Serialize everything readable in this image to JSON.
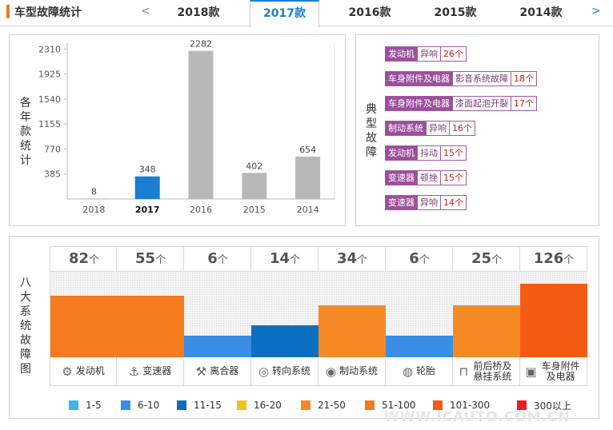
{
  "header": {
    "title": "车型故障统计",
    "prev_arrow": "<",
    "next_arrow": ">",
    "tabs": [
      {
        "label": "2018款"
      },
      {
        "label": "2017款"
      },
      {
        "label": "2016款"
      },
      {
        "label": "2015款"
      },
      {
        "label": "2014款"
      }
    ],
    "active_tab": "2017款"
  },
  "yearly_panel": {
    "label": "各年款统计"
  },
  "chart_data": {
    "type": "bar",
    "title": "",
    "xlabel": "",
    "ylabel": "各年款统计",
    "categories": [
      "2018",
      "2017",
      "2016",
      "2015",
      "2014"
    ],
    "values": [
      8,
      348,
      2282,
      402,
      654
    ],
    "highlight_category": "2017",
    "yticks": [
      385,
      770,
      1155,
      1540,
      1925,
      2310
    ],
    "ylim": [
      0,
      2400
    ],
    "colors": {
      "default": "#b8b8b8",
      "highlight": "#1a7fd0"
    },
    "grid": false
  },
  "faults_panel": {
    "label": "典型故障",
    "items": [
      {
        "system": "发动机",
        "issue": "异响",
        "count": "26个"
      },
      {
        "system": "车身附件及电器",
        "issue": "影音系统故障",
        "count": "18个"
      },
      {
        "system": "车身附件及电器",
        "issue": "漆面起泡开裂",
        "count": "17个"
      },
      {
        "system": "制动系统",
        "issue": "异响",
        "count": "16个"
      },
      {
        "system": "发动机",
        "issue": "抖动",
        "count": "15个"
      },
      {
        "system": "变速器",
        "issue": "顿挫",
        "count": "15个"
      },
      {
        "system": "变速器",
        "issue": "异响",
        "count": "14个"
      }
    ]
  },
  "systems_panel": {
    "label": "八大系统故障图",
    "unit": "个",
    "systems": [
      {
        "name": "发动机",
        "count": "82",
        "level": 0.72,
        "color": "#f47b20",
        "icon": "engine-icon",
        "glyph": "⚙"
      },
      {
        "name": "变速器",
        "count": "55",
        "level": 0.72,
        "color": "#f47b20",
        "icon": "gearbox-icon",
        "glyph": "⚓"
      },
      {
        "name": "离合器",
        "count": "6",
        "level": 0.25,
        "color": "#3a8ee6",
        "icon": "clutch-icon",
        "glyph": "⚒"
      },
      {
        "name": "转向系统",
        "count": "14",
        "level": 0.37,
        "color": "#0a6fc0",
        "icon": "steering-icon",
        "glyph": "◎"
      },
      {
        "name": "制动系统",
        "count": "34",
        "level": 0.61,
        "color": "#f58a25",
        "icon": "brake-icon",
        "glyph": "◉"
      },
      {
        "name": "轮胎",
        "count": "6",
        "level": 0.25,
        "color": "#3a8ee6",
        "icon": "tire-icon",
        "glyph": "◍"
      },
      {
        "name": "前后桥及悬挂系统",
        "count": "25",
        "level": 0.61,
        "color": "#f58a25",
        "icon": "suspension-icon",
        "glyph": "⊓"
      },
      {
        "name": "车身附件及电器",
        "count": "126",
        "level": 0.86,
        "color": "#f55a14",
        "icon": "battery-icon",
        "glyph": "▣"
      }
    ],
    "legend": [
      {
        "label": "1-5",
        "color": "#3cb5f0"
      },
      {
        "label": "6-10",
        "color": "#3a8ee6"
      },
      {
        "label": "11-15",
        "color": "#0a6fc0"
      },
      {
        "label": "16-20",
        "color": "#f7c11a"
      },
      {
        "label": "21-50",
        "color": "#f58a25"
      },
      {
        "label": "51-100",
        "color": "#f47b20"
      },
      {
        "label": "101-300",
        "color": "#f55a14"
      },
      {
        "label": "300以上",
        "color": "#e82020"
      }
    ]
  },
  "watermark": "WWW.ICAUTO.COM.CN"
}
